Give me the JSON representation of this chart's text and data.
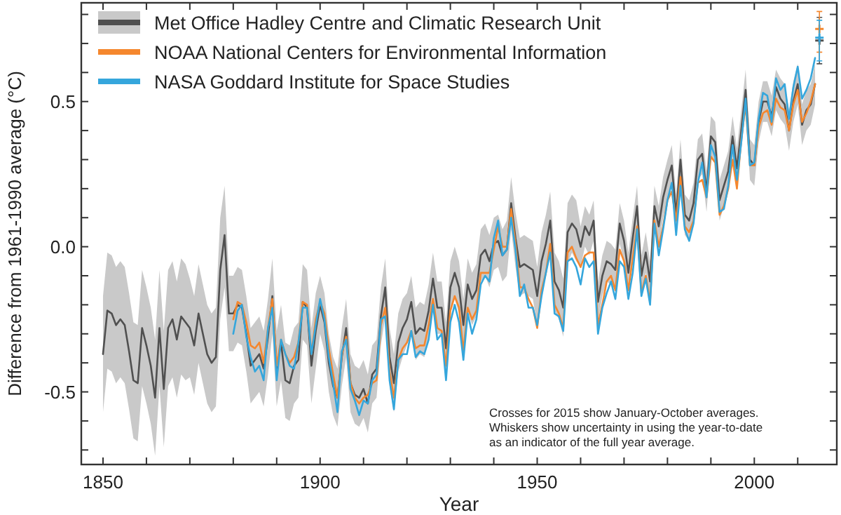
{
  "chart_data": {
    "type": "line",
    "xlabel": "Year",
    "ylabel": "Difference from 1961-1990 average (°C)",
    "annotations": [
      "Crosses for 2015 show January-October averages.\nWhiskers show uncertainty in using the year-to-date\nas an indicator of the full year average."
    ],
    "xlim": [
      1845,
      2019
    ],
    "ylim": [
      -0.75,
      0.84
    ],
    "xticks": [
      1850,
      {
        "value": 1860,
        "label": null
      },
      {
        "value": 1870,
        "label": null
      },
      {
        "value": 1880,
        "label": null
      },
      {
        "value": 1890,
        "label": null
      },
      1900,
      {
        "value": 1910,
        "label": null
      },
      {
        "value": 1920,
        "label": null
      },
      {
        "value": 1930,
        "label": null
      },
      {
        "value": 1940,
        "label": null
      },
      1950,
      {
        "value": 1960,
        "label": null
      },
      {
        "value": 1970,
        "label": null
      },
      {
        "value": 1980,
        "label": null
      },
      {
        "value": 1990,
        "label": null
      },
      2000,
      {
        "value": 2010,
        "label": null
      }
    ],
    "yticks": [
      {
        "value": -0.7,
        "label": null
      },
      {
        "value": -0.6,
        "label": null
      },
      -0.5,
      {
        "value": -0.4,
        "label": null
      },
      {
        "value": -0.3,
        "label": null
      },
      {
        "value": -0.2,
        "label": null
      },
      {
        "value": -0.1,
        "label": null
      },
      {
        "value": 0,
        "label": "0.0"
      },
      {
        "value": 0.1,
        "label": null
      },
      {
        "value": 0.2,
        "label": null
      },
      {
        "value": 0.3,
        "label": null
      },
      {
        "value": 0.4,
        "label": null
      },
      0.5,
      {
        "value": 0.6,
        "label": null
      },
      {
        "value": 0.7,
        "label": null
      },
      {
        "value": 0.8,
        "label": null
      }
    ],
    "legend": "top left",
    "series": [
      {
        "name": "Met Office Hadley Centre and Climatic Research Unit",
        "color": "#505050",
        "x": [
          1850,
          1851,
          1852,
          1853,
          1854,
          1855,
          1856,
          1857,
          1858,
          1859,
          1860,
          1861,
          1862,
          1863,
          1864,
          1865,
          1866,
          1867,
          1868,
          1869,
          1870,
          1871,
          1872,
          1873,
          1874,
          1875,
          1876,
          1877,
          1878,
          1879,
          1880,
          1881,
          1882,
          1883,
          1884,
          1885,
          1886,
          1887,
          1888,
          1889,
          1890,
          1891,
          1892,
          1893,
          1894,
          1895,
          1896,
          1897,
          1898,
          1899,
          1900,
          1901,
          1902,
          1903,
          1904,
          1905,
          1906,
          1907,
          1908,
          1909,
          1910,
          1911,
          1912,
          1913,
          1914,
          1915,
          1916,
          1917,
          1918,
          1919,
          1920,
          1921,
          1922,
          1923,
          1924,
          1925,
          1926,
          1927,
          1928,
          1929,
          1930,
          1931,
          1932,
          1933,
          1934,
          1935,
          1936,
          1937,
          1938,
          1939,
          1940,
          1941,
          1942,
          1943,
          1944,
          1945,
          1946,
          1947,
          1948,
          1949,
          1950,
          1951,
          1952,
          1953,
          1954,
          1955,
          1956,
          1957,
          1958,
          1959,
          1960,
          1961,
          1962,
          1963,
          1964,
          1965,
          1966,
          1967,
          1968,
          1969,
          1970,
          1971,
          1972,
          1973,
          1974,
          1975,
          1976,
          1977,
          1978,
          1979,
          1980,
          1981,
          1982,
          1983,
          1984,
          1985,
          1986,
          1987,
          1988,
          1989,
          1990,
          1991,
          1992,
          1993,
          1994,
          1995,
          1996,
          1997,
          1998,
          1999,
          2000,
          2001,
          2002,
          2003,
          2004,
          2005,
          2006,
          2007,
          2008,
          2009,
          2010,
          2011,
          2012,
          2013,
          2014
        ],
        "values": [
          -0.37,
          -0.22,
          -0.23,
          -0.27,
          -0.25,
          -0.27,
          -0.36,
          -0.46,
          -0.47,
          -0.28,
          -0.34,
          -0.41,
          -0.52,
          -0.28,
          -0.49,
          -0.28,
          -0.25,
          -0.32,
          -0.24,
          -0.26,
          -0.28,
          -0.34,
          -0.23,
          -0.3,
          -0.37,
          -0.4,
          -0.38,
          -0.08,
          0.04,
          -0.23,
          -0.23,
          -0.2,
          -0.21,
          -0.3,
          -0.41,
          -0.39,
          -0.37,
          -0.42,
          -0.31,
          -0.17,
          -0.42,
          -0.33,
          -0.46,
          -0.47,
          -0.41,
          -0.39,
          -0.19,
          -0.21,
          -0.41,
          -0.29,
          -0.2,
          -0.26,
          -0.4,
          -0.48,
          -0.52,
          -0.38,
          -0.28,
          -0.47,
          -0.51,
          -0.52,
          -0.49,
          -0.54,
          -0.44,
          -0.42,
          -0.24,
          -0.14,
          -0.38,
          -0.47,
          -0.33,
          -0.28,
          -0.25,
          -0.19,
          -0.3,
          -0.28,
          -0.29,
          -0.22,
          -0.11,
          -0.21,
          -0.21,
          -0.35,
          -0.14,
          -0.09,
          -0.14,
          -0.27,
          -0.13,
          -0.18,
          -0.15,
          -0.03,
          -0.01,
          -0.05,
          0.01,
          0.02,
          -0.03,
          -0.01,
          0.15,
          0.03,
          -0.07,
          -0.06,
          -0.07,
          -0.08,
          -0.17,
          -0.05,
          0.01,
          0.09,
          -0.12,
          -0.15,
          -0.21,
          0.05,
          0.08,
          0.06,
          0.0,
          0.07,
          0.04,
          0.09,
          -0.19,
          -0.1,
          -0.05,
          -0.06,
          -0.08,
          0.08,
          0.02,
          -0.09,
          0.03,
          0.14,
          -0.1,
          -0.02,
          -0.12,
          0.14,
          0.07,
          0.17,
          0.23,
          0.28,
          0.11,
          0.3,
          0.11,
          0.09,
          0.15,
          0.3,
          0.32,
          0.19,
          0.38,
          0.36,
          0.16,
          0.21,
          0.26,
          0.38,
          0.27,
          0.4,
          0.54,
          0.3,
          0.28,
          0.43,
          0.5,
          0.5,
          0.45,
          0.55,
          0.51,
          0.49,
          0.4,
          0.5,
          0.56,
          0.42,
          0.47,
          0.49,
          0.56
        ],
        "lower": [
          -0.57,
          -0.42,
          -0.43,
          -0.47,
          -0.45,
          -0.47,
          -0.56,
          -0.66,
          -0.67,
          -0.48,
          -0.54,
          -0.61,
          -0.72,
          -0.48,
          -0.69,
          -0.48,
          -0.45,
          -0.52,
          -0.44,
          -0.46,
          -0.45,
          -0.51,
          -0.4,
          -0.47,
          -0.54,
          -0.57,
          -0.55,
          -0.25,
          -0.14,
          -0.36,
          -0.36,
          -0.33,
          -0.34,
          -0.43,
          -0.54,
          -0.52,
          -0.5,
          -0.55,
          -0.44,
          -0.3,
          -0.55,
          -0.46,
          -0.59,
          -0.6,
          -0.54,
          -0.52,
          -0.32,
          -0.34,
          -0.54,
          -0.42,
          -0.3,
          -0.36,
          -0.5,
          -0.58,
          -0.62,
          -0.48,
          -0.38,
          -0.57,
          -0.61,
          -0.62,
          -0.59,
          -0.64,
          -0.54,
          -0.52,
          -0.34,
          -0.24,
          -0.48,
          -0.57,
          -0.43,
          -0.38,
          -0.34,
          -0.28,
          -0.39,
          -0.37,
          -0.38,
          -0.31,
          -0.2,
          -0.3,
          -0.3,
          -0.44,
          -0.23,
          -0.18,
          -0.23,
          -0.36,
          -0.22,
          -0.27,
          -0.24,
          -0.12,
          -0.1,
          -0.14,
          -0.08,
          -0.07,
          -0.12,
          -0.1,
          0.06,
          -0.07,
          -0.17,
          -0.16,
          -0.17,
          -0.18,
          -0.27,
          -0.15,
          -0.09,
          -0.01,
          -0.22,
          -0.25,
          -0.31,
          -0.06,
          -0.02,
          -0.05,
          -0.07,
          0.0,
          -0.03,
          0.02,
          -0.26,
          -0.17,
          -0.12,
          -0.13,
          -0.15,
          0.01,
          -0.05,
          -0.16,
          -0.04,
          0.07,
          -0.17,
          -0.09,
          -0.19,
          0.07,
          0.0,
          0.1,
          0.16,
          0.21,
          0.04,
          0.23,
          0.04,
          0.02,
          0.08,
          0.23,
          0.25,
          0.12,
          0.31,
          0.29,
          0.09,
          0.14,
          0.19,
          0.31,
          0.2,
          0.33,
          0.47,
          0.23,
          0.21,
          0.36,
          0.43,
          0.43,
          0.38,
          0.47,
          0.44,
          0.42,
          0.33,
          0.43,
          0.49,
          0.35,
          0.4,
          0.42,
          0.49
        ],
        "upper": [
          -0.17,
          -0.02,
          -0.03,
          -0.07,
          -0.05,
          -0.07,
          -0.16,
          -0.26,
          -0.27,
          -0.08,
          -0.14,
          -0.21,
          -0.32,
          -0.08,
          -0.29,
          -0.08,
          -0.05,
          -0.12,
          -0.04,
          -0.06,
          -0.11,
          -0.17,
          -0.06,
          -0.13,
          -0.2,
          -0.23,
          -0.21,
          0.1,
          0.21,
          -0.1,
          -0.1,
          -0.07,
          -0.08,
          -0.17,
          -0.28,
          -0.26,
          -0.24,
          -0.29,
          -0.18,
          -0.04,
          -0.29,
          -0.2,
          -0.33,
          -0.34,
          -0.28,
          -0.26,
          -0.06,
          -0.08,
          -0.28,
          -0.16,
          -0.1,
          -0.16,
          -0.3,
          -0.38,
          -0.42,
          -0.28,
          -0.18,
          -0.37,
          -0.41,
          -0.42,
          -0.39,
          -0.44,
          -0.34,
          -0.32,
          -0.14,
          -0.04,
          -0.28,
          -0.37,
          -0.23,
          -0.18,
          -0.16,
          -0.1,
          -0.21,
          -0.19,
          -0.2,
          -0.13,
          -0.02,
          -0.12,
          -0.12,
          -0.26,
          -0.05,
          0.0,
          -0.05,
          -0.18,
          -0.04,
          -0.09,
          -0.06,
          0.06,
          0.08,
          0.04,
          0.1,
          0.11,
          0.06,
          0.09,
          0.24,
          0.12,
          0.03,
          0.04,
          0.03,
          0.02,
          -0.07,
          0.05,
          0.11,
          0.19,
          -0.02,
          -0.05,
          -0.11,
          0.15,
          0.18,
          0.16,
          0.07,
          0.14,
          0.11,
          0.16,
          -0.12,
          -0.03,
          0.02,
          0.01,
          -0.01,
          0.15,
          0.09,
          -0.02,
          0.1,
          0.21,
          -0.03,
          0.05,
          -0.05,
          0.21,
          0.14,
          0.24,
          0.3,
          0.35,
          0.18,
          0.37,
          0.18,
          0.16,
          0.22,
          0.37,
          0.39,
          0.26,
          0.45,
          0.43,
          0.23,
          0.28,
          0.33,
          0.45,
          0.34,
          0.47,
          0.61,
          0.37,
          0.35,
          0.5,
          0.57,
          0.57,
          0.52,
          0.61,
          0.58,
          0.56,
          0.47,
          0.57,
          0.63,
          0.49,
          0.54,
          0.56,
          0.63
        ]
      },
      {
        "name": "NOAA National Centers for Environmental Information",
        "color": "#f5872e",
        "x": [
          1880,
          1881,
          1882,
          1883,
          1884,
          1885,
          1886,
          1887,
          1888,
          1889,
          1890,
          1891,
          1892,
          1893,
          1894,
          1895,
          1896,
          1897,
          1898,
          1899,
          1900,
          1901,
          1902,
          1903,
          1904,
          1905,
          1906,
          1907,
          1908,
          1909,
          1910,
          1911,
          1912,
          1913,
          1914,
          1915,
          1916,
          1917,
          1918,
          1919,
          1920,
          1921,
          1922,
          1923,
          1924,
          1925,
          1926,
          1927,
          1928,
          1929,
          1930,
          1931,
          1932,
          1933,
          1934,
          1935,
          1936,
          1937,
          1938,
          1939,
          1940,
          1941,
          1942,
          1943,
          1944,
          1945,
          1946,
          1947,
          1948,
          1949,
          1950,
          1951,
          1952,
          1953,
          1954,
          1955,
          1956,
          1957,
          1958,
          1959,
          1960,
          1961,
          1962,
          1963,
          1964,
          1965,
          1966,
          1967,
          1968,
          1969,
          1970,
          1971,
          1972,
          1973,
          1974,
          1975,
          1976,
          1977,
          1978,
          1979,
          1980,
          1981,
          1982,
          1983,
          1984,
          1985,
          1986,
          1987,
          1988,
          1989,
          1990,
          1991,
          1992,
          1993,
          1994,
          1995,
          1996,
          1997,
          1998,
          1999,
          2000,
          2001,
          2002,
          2003,
          2004,
          2005,
          2006,
          2007,
          2008,
          2009,
          2010,
          2011,
          2012,
          2013,
          2014
        ],
        "values": [
          -0.25,
          -0.19,
          -0.2,
          -0.26,
          -0.34,
          -0.35,
          -0.33,
          -0.4,
          -0.28,
          -0.18,
          -0.41,
          -0.32,
          -0.37,
          -0.4,
          -0.38,
          -0.33,
          -0.19,
          -0.2,
          -0.37,
          -0.25,
          -0.19,
          -0.23,
          -0.35,
          -0.44,
          -0.52,
          -0.37,
          -0.31,
          -0.47,
          -0.52,
          -0.54,
          -0.52,
          -0.51,
          -0.47,
          -0.46,
          -0.27,
          -0.21,
          -0.43,
          -0.52,
          -0.39,
          -0.35,
          -0.33,
          -0.29,
          -0.35,
          -0.34,
          -0.34,
          -0.27,
          -0.18,
          -0.28,
          -0.29,
          -0.41,
          -0.22,
          -0.17,
          -0.21,
          -0.36,
          -0.21,
          -0.25,
          -0.22,
          -0.09,
          -0.09,
          -0.09,
          -0.01,
          0.07,
          0.0,
          0.0,
          0.13,
          0.01,
          -0.14,
          -0.14,
          -0.18,
          -0.21,
          -0.28,
          -0.15,
          -0.09,
          0.01,
          -0.2,
          -0.23,
          -0.28,
          -0.02,
          0.0,
          -0.04,
          -0.07,
          -0.03,
          -0.02,
          -0.02,
          -0.27,
          -0.2,
          -0.12,
          -0.1,
          -0.15,
          -0.01,
          -0.05,
          -0.15,
          -0.04,
          0.07,
          -0.16,
          -0.1,
          -0.19,
          0.09,
          0.0,
          0.07,
          0.16,
          0.19,
          0.09,
          0.24,
          0.07,
          0.05,
          0.09,
          0.22,
          0.23,
          0.17,
          0.31,
          0.29,
          0.11,
          0.14,
          0.2,
          0.3,
          0.2,
          0.37,
          0.49,
          0.28,
          0.28,
          0.41,
          0.46,
          0.47,
          0.42,
          0.51,
          0.48,
          0.47,
          0.4,
          0.49,
          0.54,
          0.43,
          0.46,
          0.5,
          0.56
        ]
      },
      {
        "name": "NASA Goddard Institute for Space Studies",
        "color": "#35a6dc",
        "x": [
          1880,
          1881,
          1882,
          1883,
          1884,
          1885,
          1886,
          1887,
          1888,
          1889,
          1890,
          1891,
          1892,
          1893,
          1894,
          1895,
          1896,
          1897,
          1898,
          1899,
          1900,
          1901,
          1902,
          1903,
          1904,
          1905,
          1906,
          1907,
          1908,
          1909,
          1910,
          1911,
          1912,
          1913,
          1914,
          1915,
          1916,
          1917,
          1918,
          1919,
          1920,
          1921,
          1922,
          1923,
          1924,
          1925,
          1926,
          1927,
          1928,
          1929,
          1930,
          1931,
          1932,
          1933,
          1934,
          1935,
          1936,
          1937,
          1938,
          1939,
          1940,
          1941,
          1942,
          1943,
          1944,
          1945,
          1946,
          1947,
          1948,
          1949,
          1950,
          1951,
          1952,
          1953,
          1954,
          1955,
          1956,
          1957,
          1958,
          1959,
          1960,
          1961,
          1962,
          1963,
          1964,
          1965,
          1966,
          1967,
          1968,
          1969,
          1970,
          1971,
          1972,
          1973,
          1974,
          1975,
          1976,
          1977,
          1978,
          1979,
          1980,
          1981,
          1982,
          1983,
          1984,
          1985,
          1986,
          1987,
          1988,
          1989,
          1990,
          1991,
          1992,
          1993,
          1994,
          1995,
          1996,
          1997,
          1998,
          1999,
          2000,
          2001,
          2002,
          2003,
          2004,
          2005,
          2006,
          2007,
          2008,
          2009,
          2010,
          2011,
          2012,
          2013,
          2014
        ],
        "values": [
          -0.3,
          -0.22,
          -0.2,
          -0.31,
          -0.38,
          -0.43,
          -0.41,
          -0.46,
          -0.28,
          -0.21,
          -0.46,
          -0.32,
          -0.37,
          -0.41,
          -0.42,
          -0.33,
          -0.21,
          -0.21,
          -0.37,
          -0.27,
          -0.18,
          -0.25,
          -0.38,
          -0.47,
          -0.57,
          -0.36,
          -0.32,
          -0.49,
          -0.53,
          -0.58,
          -0.53,
          -0.54,
          -0.46,
          -0.44,
          -0.25,
          -0.24,
          -0.46,
          -0.56,
          -0.39,
          -0.37,
          -0.37,
          -0.29,
          -0.38,
          -0.36,
          -0.37,
          -0.32,
          -0.2,
          -0.32,
          -0.3,
          -0.46,
          -0.26,
          -0.2,
          -0.26,
          -0.39,
          -0.23,
          -0.3,
          -0.25,
          -0.13,
          -0.1,
          -0.12,
          0.03,
          0.09,
          -0.03,
          -0.01,
          0.1,
          -0.01,
          -0.17,
          -0.13,
          -0.21,
          -0.21,
          -0.27,
          -0.17,
          -0.09,
          -0.02,
          -0.23,
          -0.24,
          -0.29,
          -0.05,
          -0.04,
          -0.07,
          -0.13,
          -0.04,
          -0.07,
          -0.05,
          -0.3,
          -0.21,
          -0.16,
          -0.12,
          -0.18,
          -0.05,
          -0.07,
          -0.18,
          -0.09,
          0.06,
          -0.17,
          -0.11,
          -0.2,
          0.08,
          -0.03,
          0.06,
          0.16,
          0.22,
          0.04,
          0.21,
          0.06,
          0.02,
          0.08,
          0.22,
          0.29,
          0.17,
          0.35,
          0.31,
          0.12,
          0.13,
          0.21,
          0.35,
          0.23,
          0.36,
          0.51,
          0.28,
          0.29,
          0.44,
          0.53,
          0.52,
          0.43,
          0.58,
          0.54,
          0.56,
          0.44,
          0.55,
          0.62,
          0.51,
          0.54,
          0.58,
          0.65
        ]
      },
      {
        "type": "scatter",
        "marker": "cross",
        "color": "#505050",
        "x": [
          2015
        ],
        "values": [
          0.71
        ],
        "errors": [
          [
            0.63,
            0.79
          ]
        ]
      },
      {
        "type": "scatter",
        "marker": "cross",
        "color": "#f5872e",
        "x": [
          2015
        ],
        "values": [
          0.75
        ],
        "errors": [
          [
            0.67,
            0.81
          ]
        ]
      },
      {
        "type": "scatter",
        "marker": "cross",
        "color": "#35a6dc",
        "x": [
          2015
        ],
        "values": [
          0.72
        ],
        "errors": [
          [
            0.64,
            0.78
          ]
        ]
      }
    ]
  }
}
